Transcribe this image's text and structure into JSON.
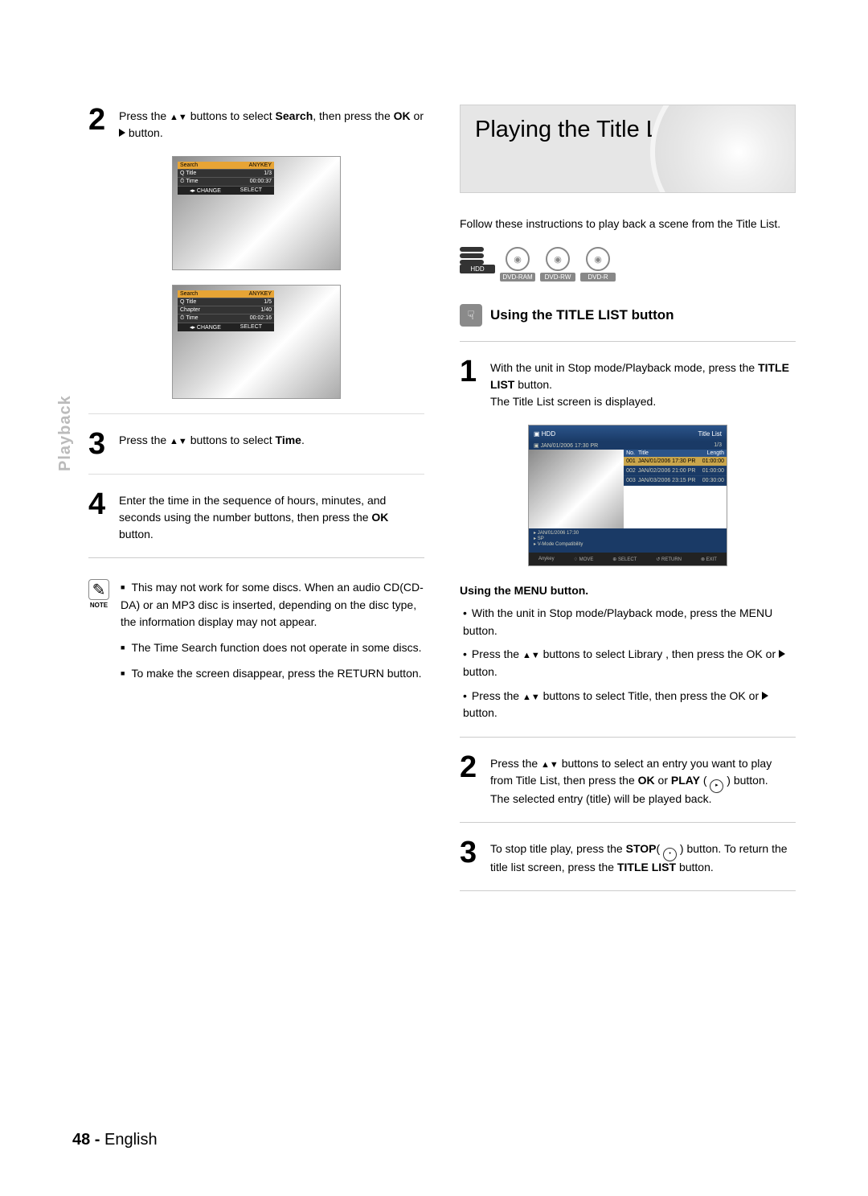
{
  "sidebar": {
    "tab": "Playback"
  },
  "left": {
    "step2": {
      "prefix": "Press the ",
      "target1": "Search",
      "mid2": ", then press the ",
      "target2": "OK",
      "mid3": " or ",
      "suffix": " button."
    },
    "osd1": {
      "hdr_l": "Search",
      "hdr_r": "ANYKEY",
      "r1_l": "Title",
      "r1_r": "1/3",
      "r2_l": "Time",
      "r2_r": "00:00:37",
      "f_l": "◂▸ CHANGE",
      "f_r": "SELECT"
    },
    "osd2": {
      "hdr_l": "Search",
      "hdr_r": "ANYKEY",
      "r1_l": "Title",
      "r1_r": "1/5",
      "r2_l": "Chapter",
      "r2_r": "1/40",
      "r3_l": "Time",
      "r3_r": "00:02:16",
      "f_l": "◂▸ CHANGE",
      "f_r": "SELECT"
    },
    "step3": {
      "prefix": "Press the ",
      "target": "Time",
      "suffix": " buttons to select "
    },
    "step4": {
      "text": "Enter the time in the sequence of hours, minutes, and seconds using the number buttons, then press the ",
      "target": "OK",
      "suffix": " button."
    },
    "note": {
      "label": "NOTE",
      "i1": "This may not work for some discs. When an audio CD(CD-DA) or an MP3 disc is inserted, depending on the disc type, the information display may not appear.",
      "i2": "The Time Search function does not operate in some discs.",
      "i3_a": "To make the screen disappear, press the ",
      "i3_b": "RETURN",
      "i3_c": " button."
    }
  },
  "right": {
    "header": "Playing the Title List",
    "intro": "Follow these instructions to play back a scene from the Title List.",
    "badges": {
      "b1": "HDD",
      "b2": "DVD-RAM",
      "b3": "DVD-RW",
      "b4": "DVD-R"
    },
    "subheader": "Using the TITLE LIST button",
    "step1": {
      "a": "With the unit in Stop mode/Playback mode, press the ",
      "b": "TITLE LIST",
      "c": " button.",
      "d": "The Title List screen is displayed."
    },
    "tl": {
      "top_l": "HDD",
      "top_r": "Title List",
      "count": "1/3",
      "date": "JAN/01/2006 17:30 PR",
      "cols": {
        "c1": "No.",
        "c2": "Title",
        "c3": "Length"
      },
      "rows": [
        {
          "n": "001",
          "t": "JAN/01/2006 17:30 PR",
          "l": "01:00:00"
        },
        {
          "n": "002",
          "t": "JAN/02/2006 21:00 PR",
          "l": "01:00:00"
        },
        {
          "n": "003",
          "t": "JAN/03/2006 23:15 PR",
          "l": "00:30:00"
        }
      ],
      "info_l1": "JAN/01/2006 17:30",
      "info_l2": "SP",
      "info_l3": "V-Mode Compatibility",
      "btm": {
        "a": "MOVE",
        "b": "SELECT",
        "c": "RETURN",
        "d": "EXIT"
      }
    },
    "menu": {
      "title": "Using the MENU button.",
      "b1_a": "With the unit in Stop mode/Playback mode, press the ",
      "b1_b": "MENU",
      "b1_c": " button.",
      "b2_a": "Press the ",
      "b2_b": "Library",
      "b2_c": " , then press the ",
      "b2_d": "OK",
      "b2_e": " or ",
      "b2_f": " button.",
      "b3_a": "Press the ",
      "b3_b": "Title",
      "b3_c": ", then press the ",
      "b3_d": "OK",
      "b3_e": " or ",
      "b3_f": " button."
    },
    "step2": {
      "a": "Press the ",
      "b": " buttons to select an entry you want to play from Title List, then press the ",
      "c": "OK",
      "d": " or ",
      "e": "PLAY",
      "f": " ( ",
      "g": " ) button.",
      "h": "The selected entry (title) will be played back."
    },
    "step3": {
      "a": "To stop title play, press the ",
      "b": "STOP",
      "c": "( ",
      "d": " ) button. To return the title list screen, press the ",
      "e": "TITLE LIST",
      "f": " button."
    }
  },
  "footer": {
    "page": "48 -",
    "lang": "English"
  }
}
